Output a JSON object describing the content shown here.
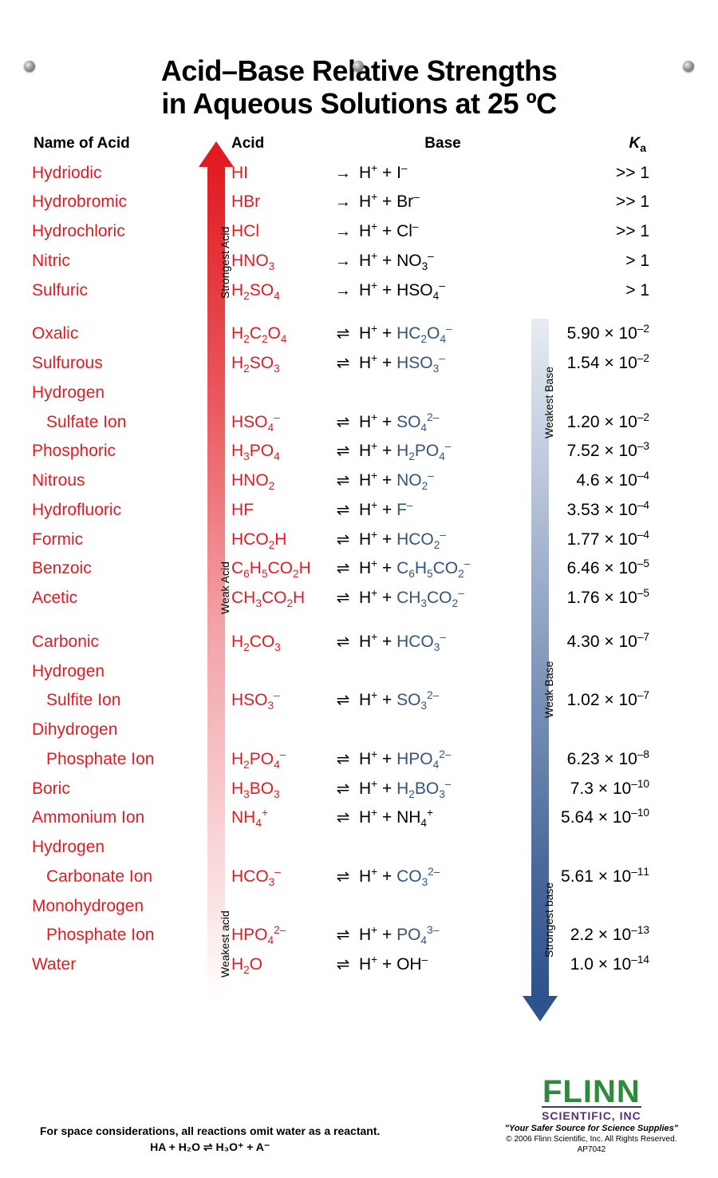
{
  "title_line1": "Acid–Base Relative Strengths",
  "title_line2": "in Aqueous Solutions at 25 ºC",
  "headers": {
    "name": "Name of Acid",
    "acid": "Acid",
    "base": "Base",
    "ka": "K"
  },
  "acid_arrow_labels": {
    "top": "Strongest Acid",
    "mid": "Weak Acid",
    "bot": "Weakest acid"
  },
  "base_arrow_labels": {
    "top": "Weakest Base",
    "mid": "Weak Base",
    "bot": "Strongest base"
  },
  "footnote": "For space considerations, all reactions omit water as a reactant.",
  "footnote_eq": "HA + H₂O ⇌ H₃O⁺ + A⁻",
  "logo": {
    "name": "FLINN",
    "sub": "SCIENTIFIC, INC",
    "tag": "\"Your Safer Source for Science Supplies\"",
    "copy": "© 2006 Flinn Scientific, Inc. All Rights Reserved.",
    "code": "AP7042"
  },
  "colors": {
    "acid": "#e11b22",
    "base": "#31557f",
    "arrow_red_top": "#e11b22",
    "arrow_blue_bot": "#2e528c"
  },
  "groups": [
    {
      "rows": [
        {
          "name": "Hydriodic",
          "acid": "HI",
          "arrow": "→",
          "base": "H⁺ + I⁻",
          "base_colored": false,
          "ka": ">> 1"
        },
        {
          "name": "Hydrobromic",
          "acid": "HBr",
          "arrow": "→",
          "base": "H⁺ + Br⁻",
          "base_colored": false,
          "ka": ">> 1"
        },
        {
          "name": "Hydrochloric",
          "acid": "HCl",
          "arrow": "→",
          "base": "H⁺ + Cl⁻",
          "base_colored": false,
          "ka": ">> 1"
        },
        {
          "name": "Nitric",
          "acid": "HNO₃",
          "arrow": "→",
          "base": "H⁺ + NO₃⁻",
          "base_colored": false,
          "ka": "> 1"
        },
        {
          "name": "Sulfuric",
          "acid": "H₂SO₄",
          "arrow": "→",
          "base": "H⁺ + HSO₄⁻",
          "base_colored": false,
          "ka": "> 1"
        }
      ]
    },
    {
      "rows": [
        {
          "name": "Oxalic",
          "acid": "H₂C₂O₄",
          "arrow": "⇌",
          "base_pre": "H⁺ + ",
          "base_conj": "HC₂O₄⁻",
          "base_colored": true,
          "ka": "5.90 × 10⁻²"
        },
        {
          "name": "Sulfurous",
          "acid": "H₂SO₃",
          "arrow": "⇌",
          "base_pre": "H⁺ + ",
          "base_conj": "HSO₃⁻",
          "base_colored": true,
          "ka": "1.54 × 10⁻²"
        },
        {
          "name": "Hydrogen",
          "name2": "Sulfate Ion",
          "acid": "HSO₄⁻",
          "arrow": "⇌",
          "base_pre": "H⁺ + ",
          "base_conj": "SO₄²⁻",
          "base_colored": true,
          "ka": "1.20 × 10⁻²"
        },
        {
          "name": "Phosphoric",
          "acid": "H₃PO₄",
          "arrow": "⇌",
          "base_pre": "H⁺ + ",
          "base_conj": "H₂PO₄⁻",
          "base_colored": true,
          "ka": "7.52 × 10⁻³"
        },
        {
          "name": "Nitrous",
          "acid": "HNO₂",
          "arrow": "⇌",
          "base_pre": "H⁺ + ",
          "base_conj": "NO₂⁻",
          "base_colored": true,
          "ka": "4.6 × 10⁻⁴"
        },
        {
          "name": "Hydrofluoric",
          "acid": "HF",
          "arrow": "⇌",
          "base_pre": "H⁺ + ",
          "base_conj": "F⁻",
          "base_colored": true,
          "ka": "3.53 × 10⁻⁴"
        },
        {
          "name": "Formic",
          "acid": "HCO₂H",
          "arrow": "⇌",
          "base_pre": "H⁺ + ",
          "base_conj": "HCO₂⁻",
          "base_colored": true,
          "ka": "1.77 × 10⁻⁴"
        },
        {
          "name": "Benzoic",
          "acid": "C₆H₅CO₂H",
          "arrow": "⇌",
          "base_pre": "H⁺ + ",
          "base_conj": "C₆H₅CO₂⁻",
          "base_colored": true,
          "ka": "6.46 × 10⁻⁵"
        },
        {
          "name": "Acetic",
          "acid": "CH₃CO₂H",
          "arrow": "⇌",
          "base_pre": "H⁺ + ",
          "base_conj": "CH₃CO₂⁻",
          "base_colored": true,
          "ka": "1.76 × 10⁻⁵"
        }
      ]
    },
    {
      "rows": [
        {
          "name": "Carbonic",
          "acid": "H₂CO₃",
          "arrow": "⇌",
          "base_pre": "H⁺ + ",
          "base_conj": "HCO₃⁻",
          "base_colored": true,
          "ka": "4.30 × 10⁻⁷"
        },
        {
          "name": "Hydrogen",
          "name2": "Sulfite Ion",
          "acid": "HSO₃⁻",
          "arrow": "⇌",
          "base_pre": "H⁺ + ",
          "base_conj": "SO₃²⁻",
          "base_colored": true,
          "ka": "1.02 × 10⁻⁷"
        },
        {
          "name": "Dihydrogen",
          "name2": "Phosphate Ion",
          "acid": "H₂PO₄⁻",
          "arrow": "⇌",
          "base_pre": "H⁺ + ",
          "base_conj": "HPO₄²⁻",
          "base_colored": true,
          "ka": "6.23 × 10⁻⁸"
        },
        {
          "name": "Boric",
          "acid": "H₃BO₃",
          "arrow": "⇌",
          "base_pre": "H⁺ + ",
          "base_conj": "H₂BO₃⁻",
          "base_colored": true,
          "ka": "7.3 × 10⁻¹⁰"
        },
        {
          "name": "Ammonium Ion",
          "acid": "NH₄⁺",
          "arrow": "⇌",
          "base_pre": "H⁺ + ",
          "base_conj": "NH₄⁺",
          "base_colored": false,
          "ka": "5.64 × 10⁻¹⁰"
        },
        {
          "name": "Hydrogen",
          "name2": "Carbonate Ion",
          "acid": "HCO₃⁻",
          "arrow": "⇌",
          "base_pre": "H⁺ + ",
          "base_conj": "CO₃²⁻",
          "base_colored": true,
          "ka": "5.61 × 10⁻¹¹"
        },
        {
          "name": "Monohydrogen",
          "name2": "Phosphate Ion",
          "acid": "HPO₄²⁻",
          "arrow": "⇌",
          "base_pre": "H⁺ + ",
          "base_conj": "PO₄³⁻",
          "base_colored": true,
          "ka": "2.2 × 10⁻¹³"
        },
        {
          "name": "Water",
          "acid": "H₂O",
          "arrow": "⇌",
          "base_pre": "H⁺ + ",
          "base_conj": "OH⁻",
          "base_colored": false,
          "ka": "1.0 × 10⁻¹⁴"
        }
      ]
    }
  ]
}
